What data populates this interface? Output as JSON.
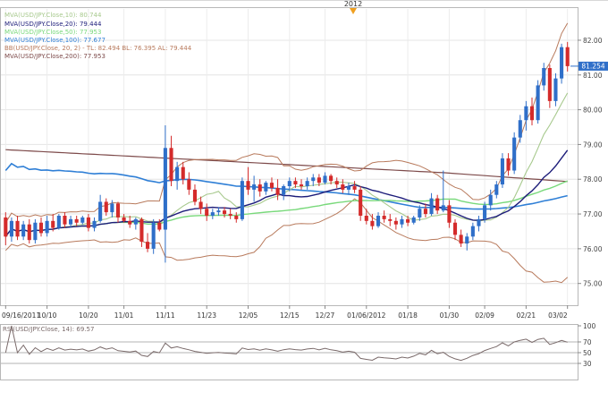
{
  "colors": {
    "up": "#2f6fc9",
    "down": "#d42b2b",
    "mva10": "#a7c98d",
    "mva20": "#1d1d7a",
    "mva50": "#79d97b",
    "mva100": "#2f7fd6",
    "mva200": "#7d4a4a",
    "bb": "#b87a5c",
    "rsi": "#7a6a6a",
    "price_badge": "#2f6fc9",
    "marker": "#f0a020"
  },
  "top_marker": {
    "label": "2012",
    "icon": "triangle-marker-icon"
  },
  "legend": [
    {
      "text": "MVA(USD/JPY.Close,10): 80.744",
      "color": "#a7c98d"
    },
    {
      "text": "MVA(USD/JPY.Close,20): 79.444",
      "color": "#1d1d7a"
    },
    {
      "text": "MVA(USD/JPY.Close,50): 77.953",
      "color": "#79d97b"
    },
    {
      "text": "MVA(USD/JPY.Close,100): 77.677",
      "color": "#2f7fd6"
    },
    {
      "text": "BB(USD/JPY.Close, 20, 2) - TL: 82.494  BL: 76.395  AL: 79.444",
      "color": "#b87a5c"
    },
    {
      "text": "MVA(USD/JPY.Close,200): 77.953",
      "color": "#7d4a4a"
    }
  ],
  "price_badge": "81.254",
  "rsi_legend": "RSI(USD/JPY.Close, 14): 69.57",
  "chart_data": {
    "type": "candlestick",
    "symbol": "USD/JPY",
    "x_tick_labels": [
      "09/16/2011",
      "10/10",
      "10/20",
      "11/01",
      "11/11",
      "11/23",
      "12/05",
      "12/15",
      "12/27",
      "01/06/2012",
      "01/18",
      "01/30",
      "02/09",
      "02/21",
      "03/02"
    ],
    "y_axis": {
      "ticks": [
        75.0,
        76.0,
        77.0,
        78.0,
        79.0,
        80.0,
        81.0,
        82.0
      ],
      "tick_labels": [
        "75.00",
        "76.00",
        "77.00",
        "78.00",
        "79.00",
        "80.00",
        "81.00",
        "82.00"
      ],
      "range": [
        74.4,
        82.9
      ],
      "side": "right"
    },
    "rsi_axis": {
      "ticks": [
        30,
        50,
        70,
        100
      ],
      "range": [
        0,
        100
      ],
      "reference_lines": [
        30,
        50,
        70
      ]
    },
    "last_close": 81.254,
    "rsi_last": 69.57,
    "ohlc": [
      [
        76.9,
        77.05,
        76.1,
        76.35
      ],
      [
        76.35,
        76.9,
        76.2,
        76.8
      ],
      [
        76.8,
        76.95,
        76.25,
        76.35
      ],
      [
        76.35,
        76.8,
        76.25,
        76.7
      ],
      [
        76.7,
        76.85,
        76.15,
        76.25
      ],
      [
        76.25,
        76.85,
        76.15,
        76.75
      ],
      [
        76.75,
        76.9,
        76.35,
        76.45
      ],
      [
        76.45,
        76.95,
        76.35,
        76.8
      ],
      [
        76.8,
        77.0,
        76.5,
        76.6
      ],
      [
        76.6,
        77.0,
        76.55,
        76.95
      ],
      [
        76.95,
        77.05,
        76.6,
        76.7
      ],
      [
        76.7,
        76.95,
        76.6,
        76.85
      ],
      [
        76.85,
        76.95,
        76.65,
        76.75
      ],
      [
        76.75,
        76.95,
        76.7,
        76.9
      ],
      [
        76.9,
        77.0,
        76.5,
        76.6
      ],
      [
        76.6,
        76.9,
        76.5,
        76.8
      ],
      [
        76.8,
        77.55,
        76.75,
        77.35
      ],
      [
        77.35,
        77.45,
        76.95,
        77.05
      ],
      [
        77.05,
        77.4,
        76.9,
        77.3
      ],
      [
        77.3,
        77.35,
        76.75,
        76.9
      ],
      [
        76.9,
        77.0,
        76.75,
        76.8
      ],
      [
        76.8,
        76.95,
        76.6,
        76.7
      ],
      [
        76.7,
        76.9,
        76.55,
        76.85
      ],
      [
        76.85,
        76.9,
        76.05,
        76.2
      ],
      [
        76.2,
        76.45,
        75.9,
        76.0
      ],
      [
        76.0,
        76.85,
        75.85,
        76.75
      ],
      [
        76.75,
        76.85,
        76.5,
        76.55
      ],
      [
        76.55,
        79.55,
        75.6,
        78.9
      ],
      [
        78.9,
        79.25,
        77.8,
        77.95
      ],
      [
        77.95,
        78.5,
        77.7,
        78.35
      ],
      [
        78.35,
        78.5,
        77.85,
        78.0
      ],
      [
        78.0,
        78.2,
        77.55,
        77.7
      ],
      [
        77.7,
        77.85,
        77.25,
        77.35
      ],
      [
        77.35,
        77.5,
        77.0,
        77.15
      ],
      [
        77.15,
        77.3,
        76.8,
        76.95
      ],
      [
        76.95,
        77.15,
        76.85,
        77.05
      ],
      [
        77.05,
        77.2,
        76.95,
        77.1
      ],
      [
        77.1,
        77.2,
        76.9,
        77.0
      ],
      [
        77.0,
        77.15,
        76.85,
        76.95
      ],
      [
        76.95,
        77.05,
        76.75,
        76.85
      ],
      [
        76.85,
        78.05,
        76.8,
        77.95
      ],
      [
        77.95,
        78.35,
        77.55,
        77.7
      ],
      [
        77.7,
        78.1,
        77.35,
        77.85
      ],
      [
        77.85,
        78.0,
        77.5,
        77.65
      ],
      [
        77.65,
        77.95,
        77.55,
        77.9
      ],
      [
        77.9,
        78.05,
        77.65,
        77.75
      ],
      [
        77.75,
        78.0,
        77.4,
        77.55
      ],
      [
        77.55,
        77.85,
        77.4,
        77.8
      ],
      [
        77.8,
        78.05,
        77.65,
        77.95
      ],
      [
        77.95,
        78.05,
        77.75,
        77.85
      ],
      [
        77.85,
        78.0,
        77.7,
        77.8
      ],
      [
        77.8,
        78.05,
        77.7,
        77.95
      ],
      [
        77.95,
        78.15,
        77.8,
        78.05
      ],
      [
        78.05,
        78.15,
        77.8,
        77.9
      ],
      [
        77.9,
        78.2,
        77.85,
        78.1
      ],
      [
        78.1,
        78.15,
        77.85,
        77.95
      ],
      [
        77.95,
        78.05,
        77.75,
        77.85
      ],
      [
        77.85,
        78.0,
        77.6,
        77.7
      ],
      [
        77.7,
        77.9,
        77.55,
        77.8
      ],
      [
        77.8,
        77.95,
        77.6,
        77.7
      ],
      [
        77.7,
        77.8,
        76.8,
        76.95
      ],
      [
        76.95,
        77.15,
        76.7,
        76.8
      ],
      [
        76.8,
        77.0,
        76.55,
        76.65
      ],
      [
        76.65,
        77.05,
        76.6,
        76.95
      ],
      [
        76.95,
        77.1,
        76.75,
        76.85
      ],
      [
        76.85,
        77.0,
        76.65,
        76.8
      ],
      [
        76.8,
        76.9,
        76.55,
        76.7
      ],
      [
        76.7,
        76.95,
        76.6,
        76.85
      ],
      [
        76.85,
        76.95,
        76.65,
        76.75
      ],
      [
        76.75,
        76.95,
        76.7,
        76.9
      ],
      [
        76.9,
        77.25,
        76.8,
        77.15
      ],
      [
        77.15,
        77.3,
        76.9,
        77.0
      ],
      [
        77.0,
        77.6,
        76.95,
        77.45
      ],
      [
        77.45,
        77.55,
        77.0,
        77.1
      ],
      [
        77.1,
        78.25,
        77.05,
        77.25
      ],
      [
        77.25,
        77.4,
        76.6,
        76.75
      ],
      [
        76.75,
        76.85,
        76.25,
        76.4
      ],
      [
        76.4,
        76.55,
        76.05,
        76.15
      ],
      [
        76.15,
        76.45,
        75.95,
        76.35
      ],
      [
        76.35,
        76.75,
        76.25,
        76.65
      ],
      [
        76.65,
        76.95,
        76.5,
        76.85
      ],
      [
        76.85,
        77.35,
        76.75,
        77.25
      ],
      [
        77.25,
        77.7,
        77.1,
        77.55
      ],
      [
        77.55,
        77.95,
        77.45,
        77.85
      ],
      [
        77.85,
        78.75,
        77.75,
        78.6
      ],
      [
        78.6,
        78.75,
        78.1,
        78.25
      ],
      [
        78.25,
        79.35,
        78.15,
        79.2
      ],
      [
        79.2,
        79.85,
        79.05,
        79.7
      ],
      [
        79.7,
        80.25,
        79.4,
        80.1
      ],
      [
        80.1,
        80.35,
        79.55,
        79.7
      ],
      [
        79.7,
        80.85,
        79.6,
        80.7
      ],
      [
        80.7,
        81.35,
        80.55,
        81.2
      ],
      [
        81.2,
        81.3,
        80.05,
        80.25
      ],
      [
        80.25,
        81.05,
        80.1,
        80.9
      ],
      [
        80.9,
        81.9,
        80.75,
        81.8
      ],
      [
        81.8,
        81.95,
        81.1,
        81.254
      ]
    ]
  }
}
